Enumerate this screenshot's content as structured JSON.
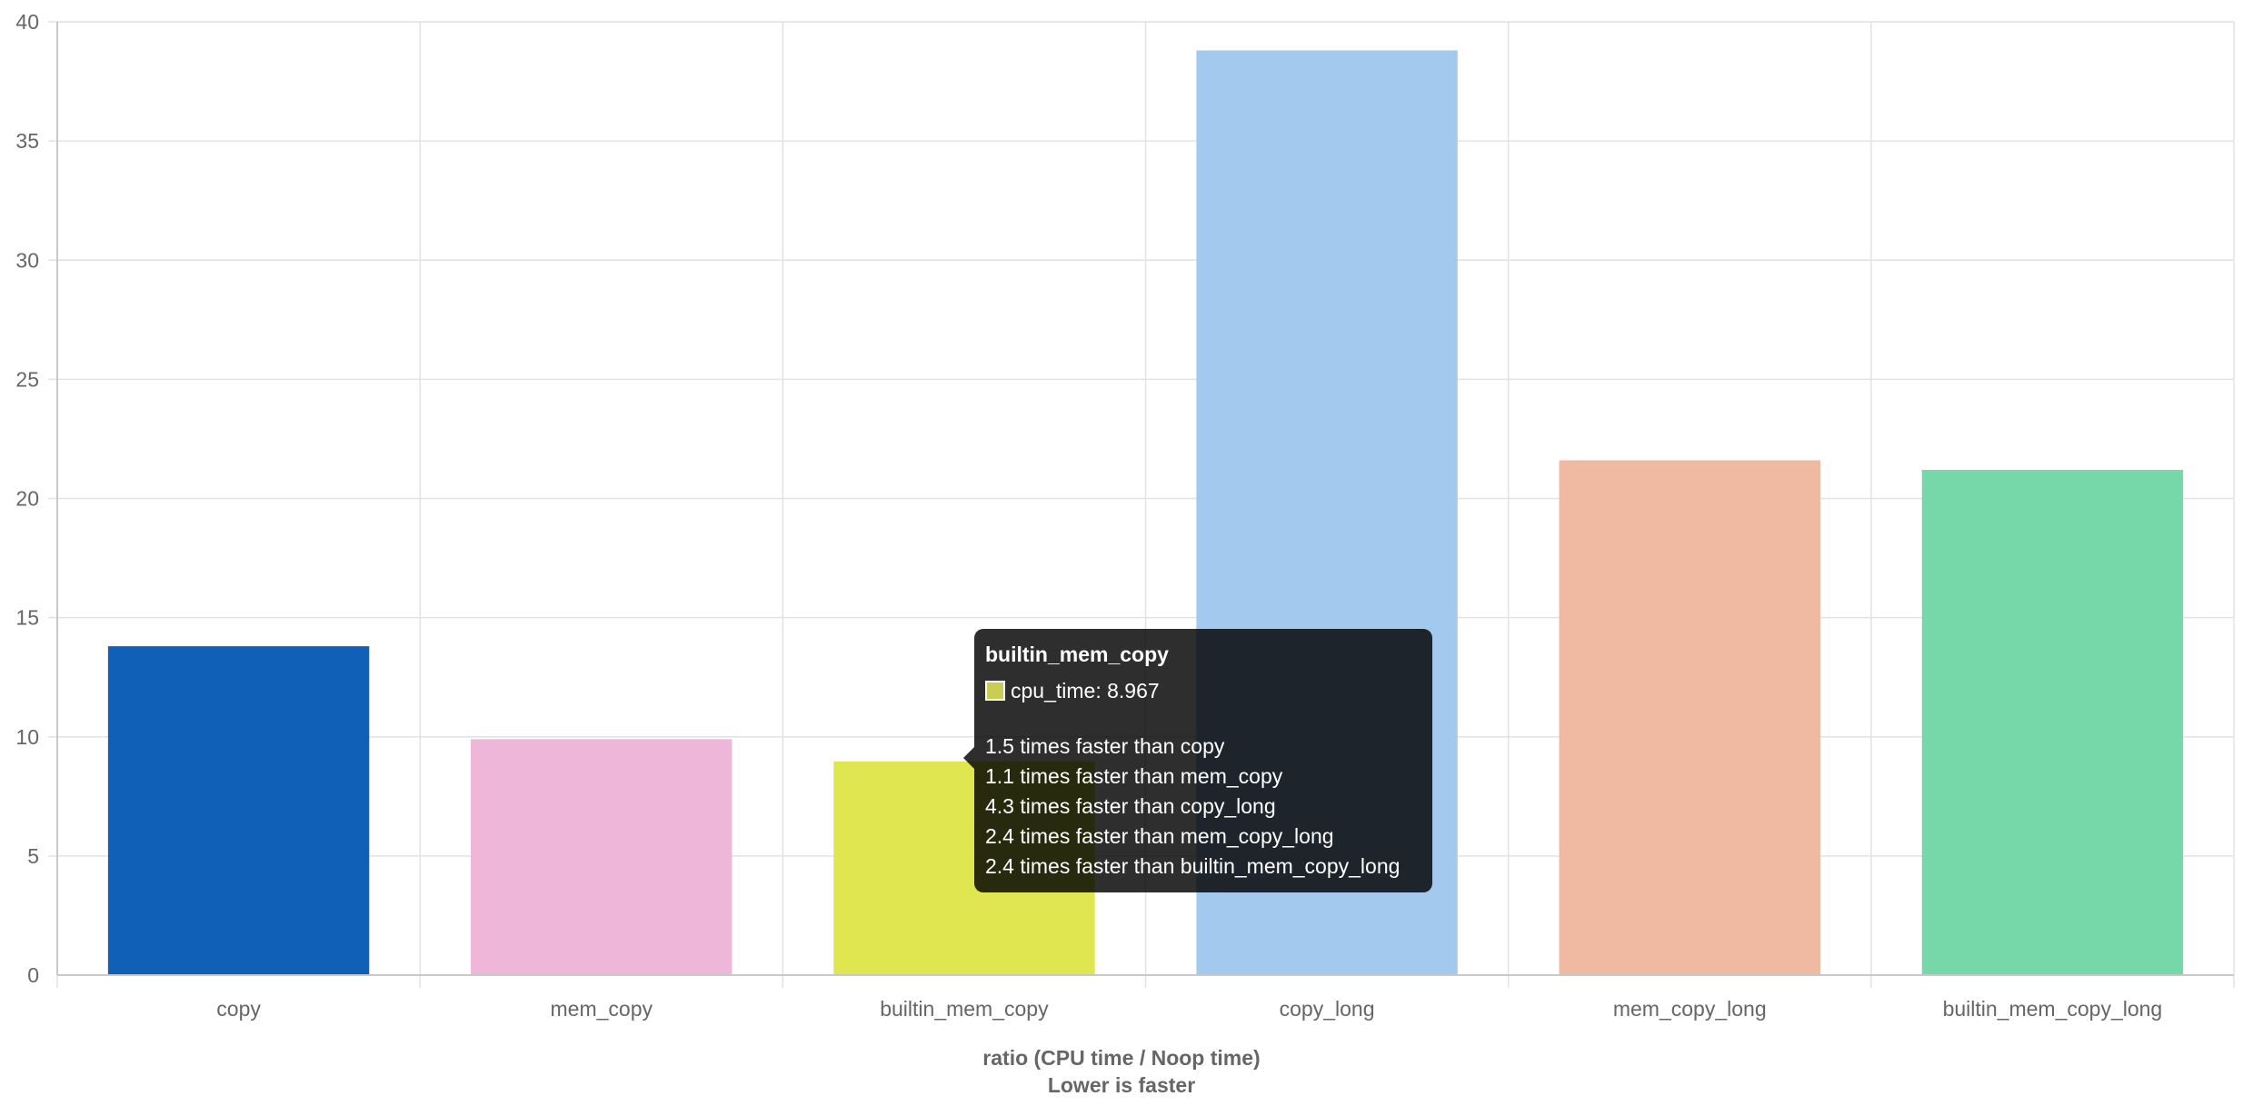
{
  "chart_data": {
    "type": "bar",
    "categories": [
      "copy",
      "mem_copy",
      "builtin_mem_copy",
      "copy_long",
      "mem_copy_long",
      "builtin_mem_copy_long"
    ],
    "series": [
      {
        "name": "cpu_time",
        "values": [
          13.8,
          9.9,
          8.967,
          38.8,
          21.6,
          21.2
        ]
      }
    ],
    "colors": [
      "#1060b8",
      "#eeb6d8",
      "#dfe650",
      "#a3c9ef",
      "#f0b9a2",
      "#76d8a8"
    ],
    "ylim": [
      0,
      40
    ],
    "yticks": [
      "0",
      "5",
      "10",
      "15",
      "20",
      "25",
      "30",
      "35",
      "40"
    ],
    "xlabel": "ratio (CPU time / Noop time)",
    "xlabel_sub": "Lower is faster",
    "grid": true
  },
  "tooltip": {
    "title": "builtin_mem_copy",
    "value_label": "cpu_time: 8.967",
    "swatch_color": "#c9ce52",
    "lines": [
      "1.5 times faster than copy",
      "1.1 times faster than mem_copy",
      "4.3 times faster than copy_long",
      "2.4 times faster than mem_copy_long",
      "2.4 times faster than builtin_mem_copy_long"
    ]
  }
}
